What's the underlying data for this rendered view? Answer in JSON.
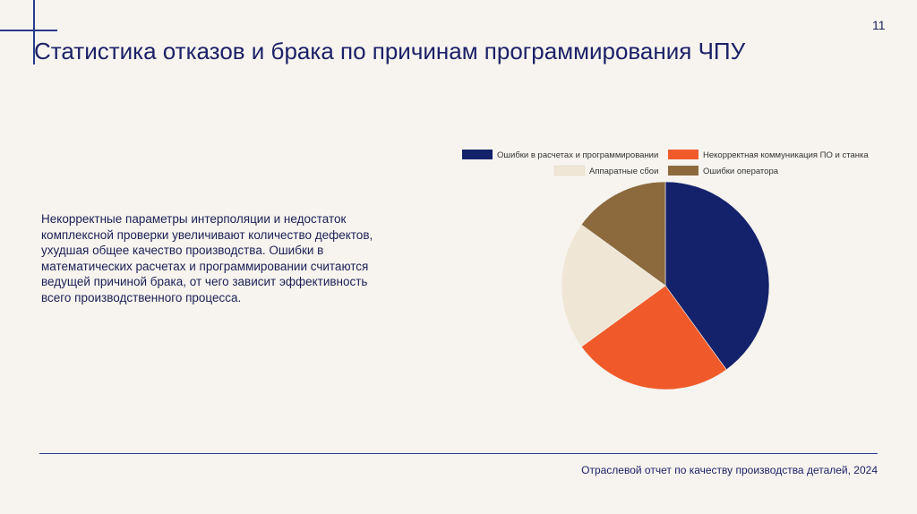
{
  "slide": {
    "page_number": "11",
    "title": "Статистика отказов и брака по причинам программирования ЧПУ",
    "body": "Некорректные параметры интерполяции и недостаток комплексной проверки увеличивают количество дефектов, ухудшая общее качество производства. Ошибки в математических расчетах и программировании считаются ведущей причиной брака, от чего зависит эффективность всего производственного процесса.",
    "footer": "Отраслевой отчет по качеству производства деталей, 2024"
  },
  "chart_data": {
    "type": "pie",
    "title": "",
    "legend_position": "top-right",
    "slices": [
      {
        "label": "Ошибки в расчетах и программировании",
        "value": 40,
        "color": "#14226b"
      },
      {
        "label": "Некорректная коммуникация ПО и станка",
        "value": 25,
        "color": "#f05a2a"
      },
      {
        "label": "Аппаратные сбои",
        "value": 20,
        "color": "#efe6d6"
      },
      {
        "label": "Ошибки оператора",
        "value": 15,
        "color": "#8c6a3e"
      }
    ]
  }
}
